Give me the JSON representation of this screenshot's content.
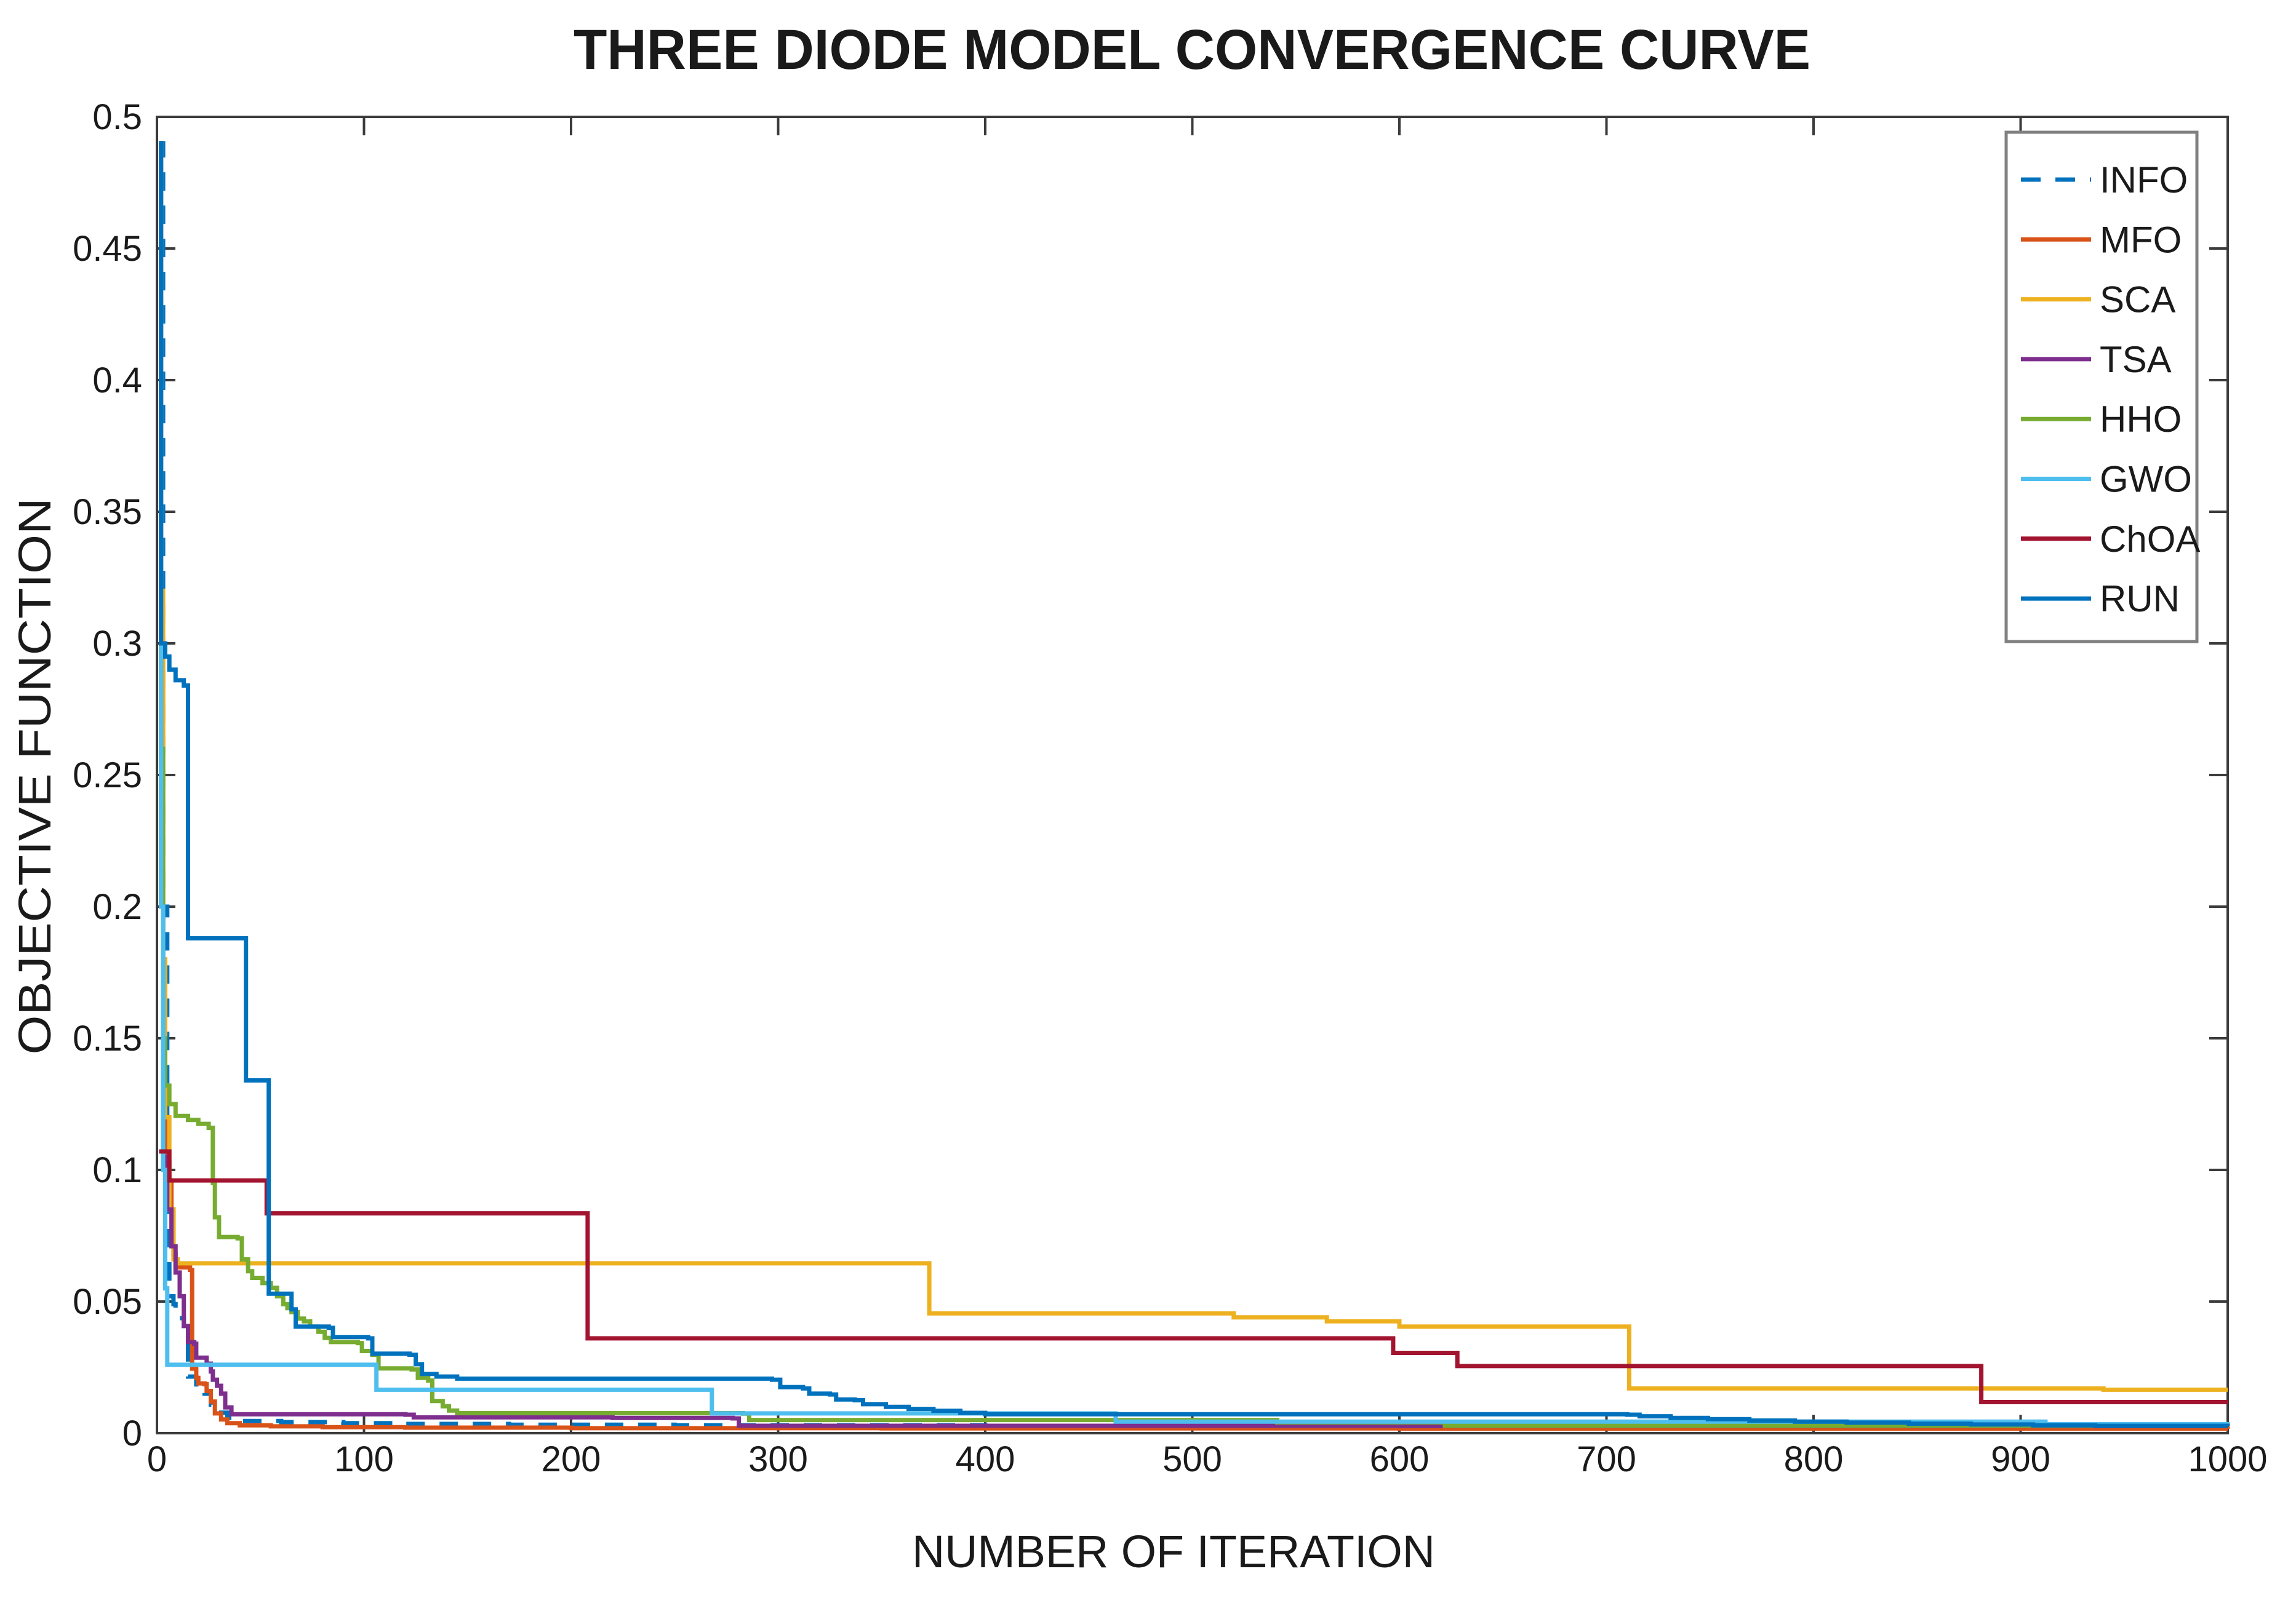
{
  "figure": {
    "title": "THREE DIODE MODEL CONVERGENCE CURVE",
    "xlabel": "NUMBER OF ITERATION",
    "ylabel": "OBJECTIVE FUNCTION"
  },
  "chart_data": {
    "type": "line",
    "title": "THREE DIODE MODEL CONVERGENCE CURVE",
    "xlabel": "NUMBER OF ITERATION",
    "ylabel": "OBJECTIVE FUNCTION",
    "xlim": [
      0,
      1000
    ],
    "ylim": [
      0,
      0.5
    ],
    "grid": false,
    "legend_position": "top-right",
    "xticks": {
      "values": [
        0,
        100,
        200,
        300,
        400,
        500,
        600,
        700,
        800,
        900,
        1000
      ],
      "labels": [
        "0",
        "100",
        "200",
        "300",
        "400",
        "500",
        "600",
        "700",
        "800",
        "900",
        "1000"
      ]
    },
    "yticks": {
      "values": [
        0,
        0.05,
        0.1,
        0.15,
        0.2,
        0.25,
        0.3,
        0.35,
        0.4,
        0.45,
        0.5
      ],
      "labels": [
        "0",
        "0.05",
        "0.1",
        "0.15",
        "0.2",
        "0.25",
        "0.3",
        "0.35",
        "0.4",
        "0.45",
        "0.5"
      ]
    },
    "style": {
      "line_width": 7,
      "axis_color": "#3b3b3b",
      "tick_length": 30,
      "legend_border_color": "#808080",
      "background": "#ffffff",
      "info_dash_pattern": "30 24"
    },
    "series": [
      {
        "name": "INFO",
        "color": "#0072BD",
        "dashed": true,
        "points": [
          [
            1,
            0.49
          ],
          [
            3,
            0.2
          ],
          [
            5,
            0.09
          ],
          [
            6,
            0.052
          ],
          [
            8,
            0.049
          ],
          [
            9,
            0.0437
          ],
          [
            13,
            0.0407
          ],
          [
            15,
            0.0215
          ],
          [
            19,
            0.0185
          ],
          [
            23,
            0.015
          ],
          [
            26,
            0.0108
          ],
          [
            30,
            0.0078
          ],
          [
            34,
            0.0058
          ],
          [
            37,
            0.0046
          ],
          [
            60,
            0.0042
          ],
          [
            90,
            0.0038
          ],
          [
            118,
            0.0035
          ],
          [
            170,
            0.0032
          ],
          [
            250,
            0.003
          ],
          [
            400,
            0.0028
          ],
          [
            650,
            0.0026
          ],
          [
            1000,
            0.0025
          ]
        ]
      },
      {
        "name": "MFO",
        "color": "#D95319",
        "dashed": false,
        "points": [
          [
            1,
            0.49
          ],
          [
            2,
            0.3
          ],
          [
            3,
            0.16
          ],
          [
            4,
            0.115
          ],
          [
            5,
            0.103
          ],
          [
            6,
            0.096
          ],
          [
            7,
            0.085
          ],
          [
            8,
            0.068
          ],
          [
            9,
            0.063
          ],
          [
            16,
            0.062
          ],
          [
            17,
            0.0245
          ],
          [
            19,
            0.021
          ],
          [
            20,
            0.0189
          ],
          [
            23,
            0.0186
          ],
          [
            24,
            0.016
          ],
          [
            26,
            0.012
          ],
          [
            28,
            0.0075
          ],
          [
            31,
            0.0052
          ],
          [
            34,
            0.0038
          ],
          [
            40,
            0.003
          ],
          [
            55,
            0.0026
          ],
          [
            80,
            0.0023
          ],
          [
            120,
            0.0021
          ],
          [
            200,
            0.0019
          ],
          [
            350,
            0.0018
          ],
          [
            600,
            0.0017
          ],
          [
            1000,
            0.0016
          ]
        ]
      },
      {
        "name": "SCA",
        "color": "#EDB120",
        "dashed": false,
        "points": [
          [
            1,
            0.49
          ],
          [
            2,
            0.32
          ],
          [
            3,
            0.18
          ],
          [
            4,
            0.12
          ],
          [
            6,
            0.085
          ],
          [
            8,
            0.066
          ],
          [
            10,
            0.0645
          ],
          [
            371,
            0.0645
          ],
          [
            373,
            0.0455
          ],
          [
            518,
            0.0455
          ],
          [
            520,
            0.044
          ],
          [
            563,
            0.044
          ],
          [
            565,
            0.0425
          ],
          [
            598,
            0.0425
          ],
          [
            600,
            0.0405
          ],
          [
            709,
            0.0405
          ],
          [
            711,
            0.017
          ],
          [
            938,
            0.017
          ],
          [
            940,
            0.0165
          ],
          [
            1000,
            0.0165
          ]
        ]
      },
      {
        "name": "TSA",
        "color": "#7E2F8E",
        "dashed": false,
        "points": [
          [
            1,
            0.49
          ],
          [
            2,
            0.2
          ],
          [
            3,
            0.105
          ],
          [
            5,
            0.085
          ],
          [
            7,
            0.071
          ],
          [
            9,
            0.061
          ],
          [
            11,
            0.052
          ],
          [
            13,
            0.0407
          ],
          [
            15,
            0.0346
          ],
          [
            18,
            0.034
          ],
          [
            19,
            0.0287
          ],
          [
            24,
            0.0264
          ],
          [
            26,
            0.0234
          ],
          [
            27,
            0.0203
          ],
          [
            29,
            0.018
          ],
          [
            31,
            0.015
          ],
          [
            33,
            0.0098
          ],
          [
            36,
            0.0072
          ],
          [
            120,
            0.007
          ],
          [
            124,
            0.006
          ],
          [
            220,
            0.0058
          ],
          [
            278,
            0.0056
          ],
          [
            281,
            0.0028
          ],
          [
            600,
            0.0027
          ],
          [
            1000,
            0.0026
          ]
        ]
      },
      {
        "name": "HHO",
        "color": "#77AC30",
        "dashed": false,
        "points": [
          [
            1,
            0.49
          ],
          [
            2,
            0.26
          ],
          [
            3,
            0.15
          ],
          [
            4,
            0.132
          ],
          [
            6,
            0.125
          ],
          [
            9,
            0.1205
          ],
          [
            15,
            0.119
          ],
          [
            20,
            0.1175
          ],
          [
            25,
            0.116
          ],
          [
            27,
            0.095
          ],
          [
            28,
            0.082
          ],
          [
            30,
            0.0745
          ],
          [
            39,
            0.074
          ],
          [
            41,
            0.066
          ],
          [
            44,
            0.0615
          ],
          [
            46,
            0.059
          ],
          [
            51,
            0.057
          ],
          [
            55,
            0.0552
          ],
          [
            58,
            0.052
          ],
          [
            61,
            0.049
          ],
          [
            63,
            0.0475
          ],
          [
            65,
            0.046
          ],
          [
            68,
            0.0435
          ],
          [
            71,
            0.0425
          ],
          [
            74,
            0.0405
          ],
          [
            78,
            0.0385
          ],
          [
            81,
            0.0362
          ],
          [
            84,
            0.0346
          ],
          [
            97,
            0.0342
          ],
          [
            99,
            0.0312
          ],
          [
            104,
            0.0298
          ],
          [
            107,
            0.0246
          ],
          [
            123,
            0.0242
          ],
          [
            126,
            0.021
          ],
          [
            131,
            0.02
          ],
          [
            133,
            0.0122
          ],
          [
            138,
            0.0102
          ],
          [
            141,
            0.0086
          ],
          [
            145,
            0.0076
          ],
          [
            283,
            0.0074
          ],
          [
            286,
            0.005
          ],
          [
            538,
            0.005
          ],
          [
            541,
            0.0041
          ],
          [
            618,
            0.0041
          ],
          [
            622,
            0.0028
          ],
          [
            1000,
            0.0027
          ]
        ]
      },
      {
        "name": "GWO",
        "color": "#4DBEEE",
        "dashed": false,
        "points": [
          [
            1,
            0.49
          ],
          [
            2,
            0.2
          ],
          [
            3,
            0.1
          ],
          [
            4,
            0.055
          ],
          [
            5,
            0.026
          ],
          [
            103,
            0.026
          ],
          [
            106,
            0.0165
          ],
          [
            265,
            0.0165
          ],
          [
            268,
            0.0075
          ],
          [
            459,
            0.0075
          ],
          [
            463,
            0.0044
          ],
          [
            905,
            0.0044
          ],
          [
            912,
            0.0034
          ],
          [
            1000,
            0.0032
          ]
        ]
      },
      {
        "name": "ChOA",
        "color": "#A2142F",
        "dashed": false,
        "points": [
          [
            1,
            0.107
          ],
          [
            4,
            0.107
          ],
          [
            6,
            0.096
          ],
          [
            50,
            0.096
          ],
          [
            53,
            0.0835
          ],
          [
            205,
            0.0835
          ],
          [
            208,
            0.036
          ],
          [
            594,
            0.036
          ],
          [
            597,
            0.0305
          ],
          [
            625,
            0.0305
          ],
          [
            628,
            0.0255
          ],
          [
            877,
            0.0255
          ],
          [
            881,
            0.0118
          ],
          [
            1000,
            0.0118
          ]
        ]
      },
      {
        "name": "RUN",
        "color": "#0072BD",
        "dashed": false,
        "points": [
          [
            1,
            0.49
          ],
          [
            2,
            0.3
          ],
          [
            4,
            0.295
          ],
          [
            6,
            0.29
          ],
          [
            9,
            0.286
          ],
          [
            13,
            0.284
          ],
          [
            15,
            0.188
          ],
          [
            41,
            0.188
          ],
          [
            43,
            0.134
          ],
          [
            53,
            0.134
          ],
          [
            54,
            0.053
          ],
          [
            63,
            0.053
          ],
          [
            65,
            0.047
          ],
          [
            67,
            0.0405
          ],
          [
            83,
            0.04
          ],
          [
            85,
            0.0365
          ],
          [
            102,
            0.036
          ],
          [
            104,
            0.0302
          ],
          [
            122,
            0.0298
          ],
          [
            125,
            0.0262
          ],
          [
            128,
            0.0225
          ],
          [
            135,
            0.0215
          ],
          [
            145,
            0.0207
          ],
          [
            297,
            0.0203
          ],
          [
            301,
            0.0175
          ],
          [
            312,
            0.017
          ],
          [
            315,
            0.015
          ],
          [
            325,
            0.0147
          ],
          [
            328,
            0.0128
          ],
          [
            337,
            0.0125
          ],
          [
            341,
            0.011
          ],
          [
            352,
            0.01
          ],
          [
            363,
            0.0092
          ],
          [
            375,
            0.0085
          ],
          [
            388,
            0.0077
          ],
          [
            400,
            0.0072
          ],
          [
            710,
            0.007
          ],
          [
            716,
            0.0064
          ],
          [
            731,
            0.0058
          ],
          [
            749,
            0.0053
          ],
          [
            769,
            0.0048
          ],
          [
            791,
            0.0044
          ],
          [
            816,
            0.004
          ],
          [
            846,
            0.0036
          ],
          [
            876,
            0.0033
          ],
          [
            906,
            0.003
          ],
          [
            936,
            0.0028
          ],
          [
            1000,
            0.0027
          ]
        ]
      }
    ],
    "legend_entries": [
      "INFO",
      "MFO",
      "SCA",
      "TSA",
      "HHO",
      "GWO",
      "ChOA",
      "RUN"
    ]
  }
}
